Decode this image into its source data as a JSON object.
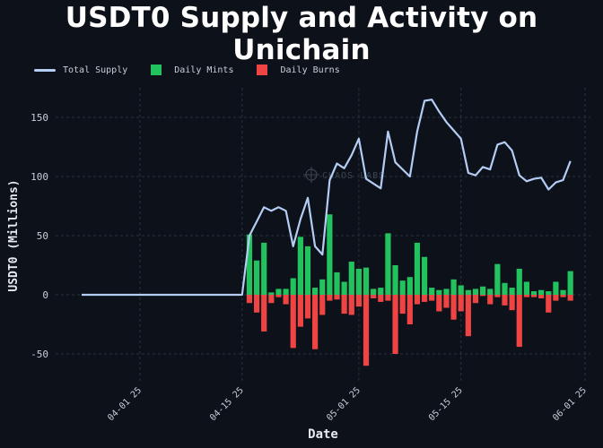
{
  "title": "USDT0 Supply and Activity on Unichain",
  "colors": {
    "background": "#0d1119",
    "supply": "#b4cdf5",
    "mints": "#22c35e",
    "burns": "#ef4444",
    "grid": "#2a3240"
  },
  "chart_data": {
    "type": "bar",
    "title": "USDT0 Supply and Activity on Unichain",
    "xlabel": "Date",
    "ylabel": "USDT0 (Millions)",
    "ylim": [
      -75,
      175
    ],
    "yticks": [
      -50,
      0,
      50,
      100,
      150
    ],
    "xticks": [
      "04-01 25",
      "04-15 25",
      "05-01 25",
      "05-15 25",
      "06-01 25"
    ],
    "grid": true,
    "legend_position": "top-left",
    "watermark": "CHAOS LABS",
    "series": [
      {
        "name": "Total Supply",
        "type": "line",
        "points": [
          [
            "03-24",
            0
          ],
          [
            "04-14",
            0
          ],
          [
            "04-15",
            0
          ],
          [
            "04-16",
            50
          ],
          [
            "04-17",
            62
          ],
          [
            "04-18",
            74
          ],
          [
            "04-19",
            71
          ],
          [
            "04-20",
            74
          ],
          [
            "04-21",
            71
          ],
          [
            "04-22",
            41
          ],
          [
            "04-23",
            64
          ],
          [
            "04-24",
            82
          ],
          [
            "04-25",
            41
          ],
          [
            "04-26",
            34
          ],
          [
            "04-27",
            97
          ],
          [
            "04-28",
            111
          ],
          [
            "04-29",
            107
          ],
          [
            "04-30",
            118
          ],
          [
            "05-01",
            132
          ],
          [
            "05-02",
            98
          ],
          [
            "05-03",
            94
          ],
          [
            "05-04",
            90
          ],
          [
            "05-05",
            138
          ],
          [
            "05-06",
            112
          ],
          [
            "05-07",
            106
          ],
          [
            "05-08",
            100
          ],
          [
            "05-09",
            138
          ],
          [
            "05-10",
            164
          ],
          [
            "05-11",
            165
          ],
          [
            "05-12",
            155
          ],
          [
            "05-13",
            146
          ],
          [
            "05-14",
            139
          ],
          [
            "05-15",
            132
          ],
          [
            "05-16",
            103
          ],
          [
            "05-17",
            101
          ],
          [
            "05-18",
            108
          ],
          [
            "05-19",
            106
          ],
          [
            "05-20",
            127
          ],
          [
            "05-21",
            129
          ],
          [
            "05-22",
            122
          ],
          [
            "05-23",
            101
          ],
          [
            "05-24",
            96
          ],
          [
            "05-25",
            98
          ],
          [
            "05-26",
            99
          ],
          [
            "05-27",
            89
          ],
          [
            "05-28",
            95
          ],
          [
            "05-29",
            97
          ],
          [
            "05-30",
            113
          ]
        ]
      },
      {
        "name": "Daily Mints",
        "type": "bar",
        "dates": [
          "04-16",
          "04-17",
          "04-18",
          "04-19",
          "04-20",
          "04-21",
          "04-22",
          "04-23",
          "04-24",
          "04-25",
          "04-26",
          "04-27",
          "04-28",
          "04-29",
          "04-30",
          "05-01",
          "05-02",
          "05-03",
          "05-04",
          "05-05",
          "05-06",
          "05-07",
          "05-08",
          "05-09",
          "05-10",
          "05-11",
          "05-12",
          "05-13",
          "05-14",
          "05-15",
          "05-16",
          "05-17",
          "05-18",
          "05-19",
          "05-20",
          "05-21",
          "05-22",
          "05-23",
          "05-24",
          "05-25",
          "05-26",
          "05-27",
          "05-28",
          "05-29",
          "05-30"
        ],
        "values": [
          51,
          29,
          44,
          2,
          5,
          5,
          14,
          49,
          41,
          6,
          13,
          68,
          19,
          11,
          28,
          22,
          23,
          5,
          6,
          52,
          25,
          12,
          15,
          44,
          32,
          6,
          4,
          5,
          13,
          8,
          4,
          5,
          7,
          5,
          26,
          10,
          6,
          22,
          11,
          3,
          4,
          3,
          11,
          4,
          20
        ]
      },
      {
        "name": "Daily Burns",
        "type": "bar",
        "dates": [
          "04-16",
          "04-17",
          "04-18",
          "04-19",
          "04-20",
          "04-21",
          "04-22",
          "04-23",
          "04-24",
          "04-25",
          "04-26",
          "04-27",
          "04-28",
          "04-29",
          "04-30",
          "05-01",
          "05-02",
          "05-03",
          "05-04",
          "05-05",
          "05-06",
          "05-07",
          "05-08",
          "05-09",
          "05-10",
          "05-11",
          "05-12",
          "05-13",
          "05-14",
          "05-15",
          "05-16",
          "05-17",
          "05-18",
          "05-19",
          "05-20",
          "05-21",
          "05-22",
          "05-23",
          "05-24",
          "05-25",
          "05-26",
          "05-27",
          "05-28",
          "05-29",
          "05-30"
        ],
        "values": [
          -7,
          -15,
          -31,
          -7,
          -2,
          -8,
          -45,
          -27,
          -20,
          -46,
          -17,
          -5,
          -4,
          -16,
          -17,
          -10,
          -60,
          -3,
          -6,
          -5,
          -50,
          -16,
          -25,
          -8,
          -6,
          -5,
          -14,
          -11,
          -21,
          -14,
          -35,
          -7,
          -1,
          -8,
          -2,
          -9,
          -13,
          -44,
          -2,
          -2,
          -3,
          -15,
          -5,
          -2,
          -5
        ]
      }
    ]
  }
}
